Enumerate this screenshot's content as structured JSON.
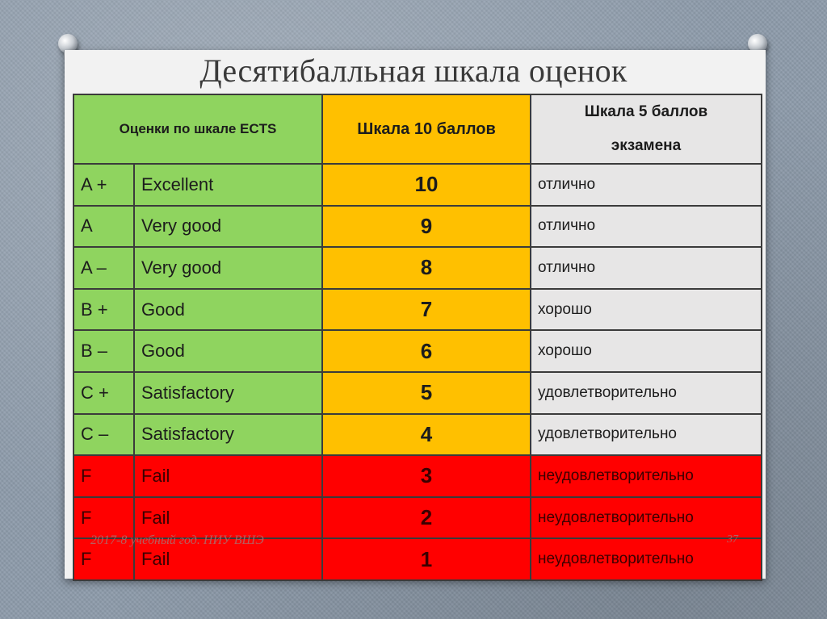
{
  "title": "Десятибалльная шкала оценок",
  "headers": {
    "ects": "Оценки по шкале ECTS",
    "ten": "Шкала 10 баллов",
    "five_line1": "Шкала 5 баллов",
    "five_line2": "экзамена"
  },
  "rows": [
    {
      "ects": "A +",
      "label": "Excellent",
      "score": "10",
      "grade": "отлично",
      "color": "green"
    },
    {
      "ects": "A",
      "label": "Very good",
      "score": "9",
      "grade": "отлично",
      "color": "green"
    },
    {
      "ects": "A –",
      "label": "Very good",
      "score": "8",
      "grade": "отлично",
      "color": "green"
    },
    {
      "ects": "B +",
      "label": "Good",
      "score": "7",
      "grade": "хорошо",
      "color": "green"
    },
    {
      "ects": "B –",
      "label": "Good",
      "score": "6",
      "grade": "хорошо",
      "color": "green"
    },
    {
      "ects": "C +",
      "label": "Satisfactory",
      "score": "5",
      "grade": "удовлетворительно",
      "color": "green"
    },
    {
      "ects": "C –",
      "label": "Satisfactory",
      "score": "4",
      "grade": "удовлетворительно",
      "color": "green"
    },
    {
      "ects": "F",
      "label": "Fail",
      "score": "3",
      "grade": "неудовлетворительно",
      "color": "red"
    },
    {
      "ects": "F",
      "label": "Fail",
      "score": "2",
      "grade": "неудовлетворительно",
      "color": "red"
    },
    {
      "ects": "F",
      "label": "Fail",
      "score": "1",
      "grade": "неудовлетворительно",
      "color": "red"
    }
  ],
  "footer": {
    "left": "2017-8 учебный год. НИУ ВШЭ",
    "right": "37"
  },
  "colors": {
    "green": "#8fd45f",
    "yellow": "#ffc000",
    "gray": "#e7e6e6",
    "red": "#ff0000"
  }
}
